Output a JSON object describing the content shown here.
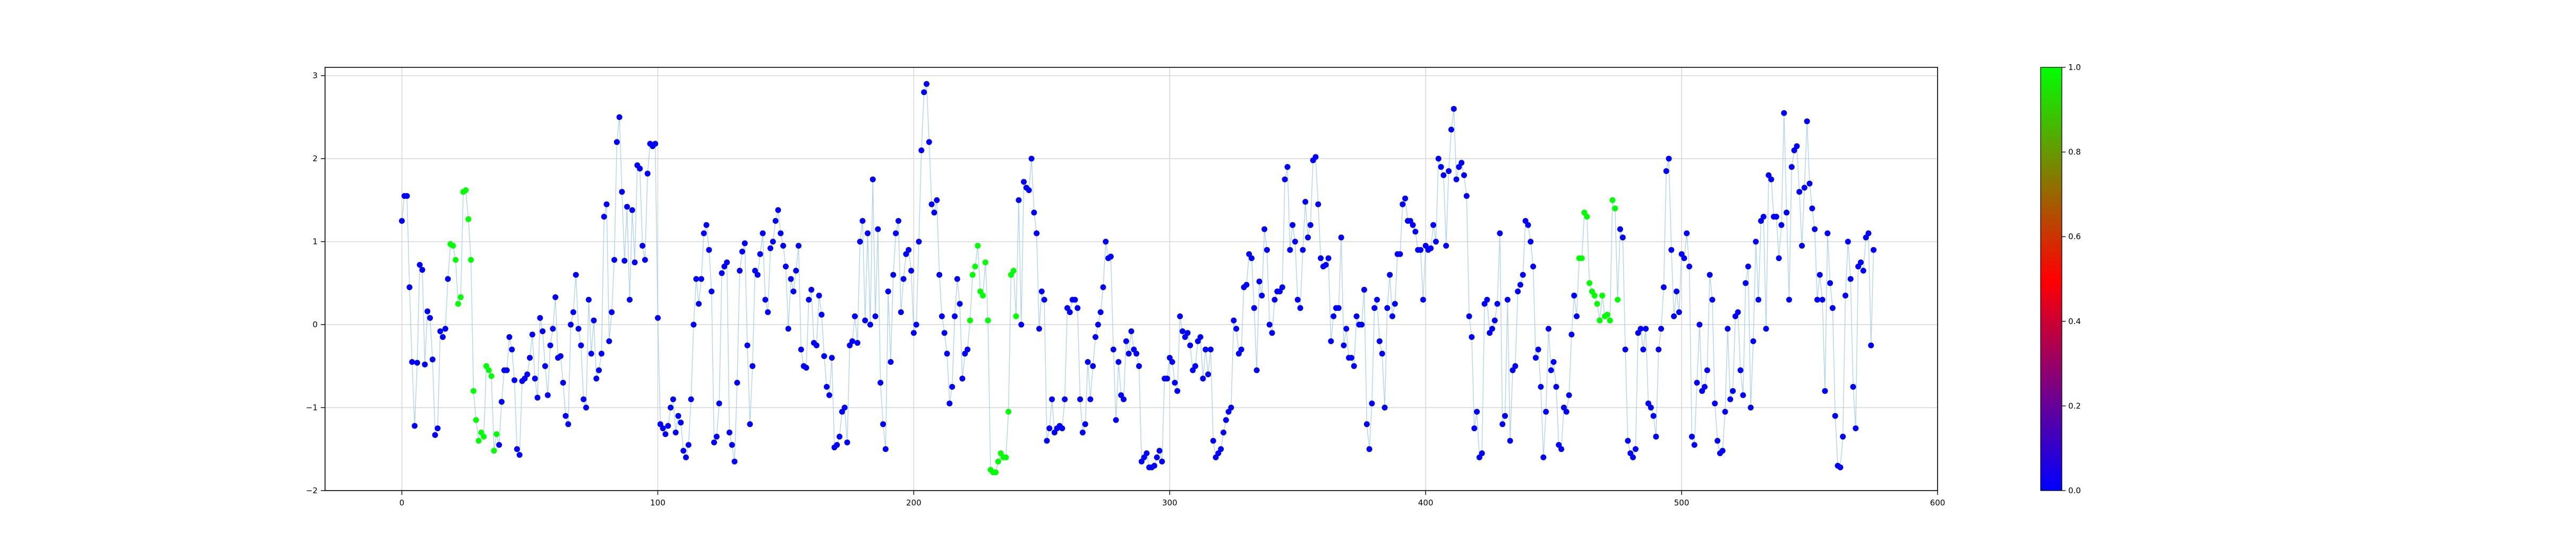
{
  "chart_data": {
    "type": "scatter",
    "title": "",
    "xlabel": "",
    "ylabel": "",
    "xlim": [
      -30,
      600
    ],
    "ylim": [
      -2,
      3.1
    ],
    "xticks": [
      0,
      100,
      200,
      300,
      400,
      500,
      600
    ],
    "yticks": [
      -2,
      -1,
      0,
      1,
      2,
      3
    ],
    "grid": true,
    "connecting_line": true,
    "colorbar": {
      "range": [
        0.0,
        1.0
      ],
      "ticks": [
        "0.0",
        "0.2",
        "0.4",
        "0.6",
        "0.8",
        "1.0"
      ],
      "colors": [
        "#0000ff",
        "#ff0000",
        "#00ff00"
      ]
    },
    "point_colors": {
      "low": "#0000ff",
      "high": "#00ff00"
    },
    "green_ranges": [
      [
        19,
        28
      ],
      [
        29,
        37
      ],
      [
        222,
        240
      ],
      [
        460,
        475
      ]
    ],
    "y": [
      1.25,
      1.55,
      1.55,
      0.45,
      -0.45,
      -1.22,
      -0.46,
      0.72,
      0.66,
      -0.48,
      0.16,
      0.08,
      -0.42,
      -1.33,
      -1.25,
      -0.08,
      -0.15,
      -0.05,
      0.55,
      0.97,
      0.95,
      0.78,
      0.25,
      0.33,
      1.6,
      1.62,
      1.27,
      0.78,
      -0.8,
      -1.15,
      -1.4,
      -1.3,
      -1.35,
      -0.5,
      -0.55,
      -0.62,
      -1.52,
      -1.32,
      -1.45,
      -0.93,
      -0.55,
      -0.55,
      -0.15,
      -0.3,
      -0.67,
      -1.5,
      -1.57,
      -0.68,
      -0.65,
      -0.6,
      -0.4,
      -0.12,
      -0.65,
      -0.88,
      0.08,
      -0.08,
      -0.5,
      -0.85,
      -0.25,
      -0.05,
      0.33,
      -0.4,
      -0.38,
      -0.7,
      -1.1,
      -1.2,
      0.0,
      0.15,
      0.6,
      -0.05,
      -0.25,
      -0.9,
      -1.0,
      0.3,
      -0.35,
      0.05,
      -0.65,
      -0.55,
      -0.35,
      1.3,
      1.45,
      -0.2,
      0.15,
      0.78,
      2.2,
      2.5,
      1.6,
      0.77,
      1.42,
      0.3,
      1.38,
      0.75,
      1.92,
      1.88,
      0.95,
      0.78,
      1.82,
      2.18,
      2.15,
      2.18,
      0.08,
      -1.2,
      -1.25,
      -1.32,
      -1.22,
      -1.0,
      -0.9,
      -1.3,
      -1.1,
      -1.18,
      -1.52,
      -1.6,
      -1.45,
      -0.9,
      0.0,
      0.55,
      0.25,
      0.55,
      1.1,
      1.2,
      0.9,
      0.4,
      -1.42,
      -1.35,
      -0.95,
      0.62,
      0.7,
      0.75,
      -1.3,
      -1.45,
      -1.65,
      -0.7,
      0.65,
      0.88,
      0.98,
      -0.25,
      -1.2,
      -0.5,
      0.65,
      0.6,
      0.85,
      1.1,
      0.3,
      0.15,
      0.92,
      1.0,
      1.25,
      1.38,
      1.1,
      0.95,
      0.7,
      -0.05,
      0.55,
      0.4,
      0.65,
      0.95,
      -0.3,
      -0.5,
      -0.52,
      0.3,
      0.42,
      -0.22,
      -0.25,
      0.35,
      0.12,
      -0.38,
      -0.75,
      -0.85,
      -0.4,
      -1.48,
      -1.45,
      -1.35,
      -1.05,
      -1.0,
      -1.42,
      -0.25,
      -0.2,
      0.1,
      -0.22,
      1.0,
      1.25,
      0.05,
      1.1,
      0.0,
      1.75,
      0.1,
      1.15,
      -0.7,
      -1.2,
      -1.5,
      0.4,
      -0.45,
      0.6,
      1.1,
      1.25,
      0.15,
      0.55,
      0.85,
      0.9,
      0.65,
      -0.1,
      0.0,
      1.0,
      2.1,
      2.8,
      2.9,
      2.2,
      1.45,
      1.35,
      1.5,
      0.6,
      0.1,
      -0.1,
      -0.35,
      -0.95,
      -0.75,
      0.1,
      0.55,
      0.25,
      -0.65,
      -0.35,
      -0.3,
      0.05,
      0.6,
      0.7,
      0.95,
      0.4,
      0.35,
      0.75,
      0.05,
      -1.75,
      -1.78,
      -1.78,
      -1.65,
      -1.55,
      -1.6,
      -1.6,
      -1.05,
      0.6,
      0.65,
      0.1,
      1.5,
      0.0,
      1.72,
      1.65,
      1.62,
      2.0,
      1.35,
      1.1,
      -0.05,
      0.4,
      0.3,
      -1.4,
      -1.25,
      -0.9,
      -1.3,
      -1.25,
      -1.22,
      -1.25,
      -0.9,
      0.2,
      0.15,
      0.3,
      0.3,
      0.2,
      -0.9,
      -1.3,
      -1.2,
      -0.45,
      -0.9,
      -0.5,
      -0.15,
      0.0,
      0.15,
      0.45,
      1.0,
      0.8,
      0.82,
      -0.3,
      -1.15,
      -0.45,
      -0.85,
      -0.9,
      -0.2,
      -0.35,
      -0.08,
      -0.3,
      -0.35,
      -0.5,
      -1.65,
      -1.6,
      -1.55,
      -1.72,
      -1.72,
      -1.7,
      -1.6,
      -1.52,
      -1.65,
      -0.65,
      -0.65,
      -0.4,
      -0.45,
      -0.7,
      -0.8,
      0.1,
      -0.08,
      -0.15,
      -0.1,
      -0.25,
      -0.55,
      -0.5,
      -0.2,
      -0.15,
      -0.65,
      -0.3,
      -0.6,
      -0.3,
      -1.4,
      -1.6,
      -1.55,
      -1.5,
      -1.3,
      -1.15,
      -1.05,
      -1.0,
      0.05,
      -0.05,
      -0.35,
      -0.3,
      0.45,
      0.48,
      0.85,
      0.8,
      0.2,
      -0.55,
      0.52,
      0.35,
      1.15,
      0.9,
      0.0,
      -0.1,
      0.3,
      0.4,
      0.4,
      0.45,
      1.75,
      1.9,
      0.9,
      1.2,
      1.0,
      0.3,
      0.2,
      0.9,
      1.48,
      1.05,
      1.2,
      1.98,
      2.02,
      1.45,
      0.8,
      0.7,
      0.72,
      0.8,
      -0.2,
      0.1,
      0.2,
      0.2,
      1.05,
      -0.25,
      -0.05,
      -0.4,
      -0.4,
      -0.5,
      0.1,
      0.0,
      0.0,
      0.42,
      -1.2,
      -1.5,
      -0.95,
      0.2,
      0.3,
      -0.2,
      -0.35,
      -1.0,
      0.2,
      0.6,
      0.1,
      0.25,
      0.85,
      0.85,
      1.45,
      1.52,
      1.25,
      1.25,
      1.2,
      1.12,
      0.9,
      0.9,
      0.3,
      0.95,
      0.9,
      0.92,
      1.2,
      1.0,
      2.0,
      1.9,
      1.8,
      0.95,
      1.85,
      2.35,
      2.6,
      1.75,
      1.9,
      1.95,
      1.8,
      1.55,
      0.1,
      -0.15,
      -1.25,
      -1.05,
      -1.6,
      -1.55,
      0.25,
      0.3,
      -0.1,
      -0.05,
      0.05,
      0.25,
      1.1,
      -1.2,
      -1.1,
      0.3,
      -1.4,
      -0.55,
      -0.5,
      0.4,
      0.48,
      0.6,
      1.25,
      1.2,
      1.0,
      0.7,
      -0.4,
      -0.3,
      -0.75,
      -1.6,
      -1.05,
      -0.05,
      -0.55,
      -0.45,
      -0.75,
      -1.45,
      -1.5,
      -1.0,
      -1.05,
      -0.85,
      -0.12,
      0.35,
      0.1,
      0.8,
      0.8,
      1.35,
      1.3,
      0.5,
      0.4,
      0.35,
      0.25,
      0.05,
      0.35,
      0.1,
      0.12,
      0.05,
      1.5,
      1.4,
      0.3,
      1.15,
      1.05,
      -0.3,
      -1.4,
      -1.55,
      -1.6,
      -1.5,
      -0.1,
      -0.05,
      -0.3,
      -0.05,
      -0.95,
      -1.0,
      -1.1,
      -1.35,
      -0.3,
      -0.05,
      0.45,
      1.85,
      2.0,
      0.9,
      0.1,
      0.4,
      0.15,
      0.85,
      0.8,
      1.1,
      0.7,
      -1.35,
      -1.45,
      -0.7,
      0.0,
      -0.8,
      -0.75,
      -0.55,
      0.6,
      0.3,
      -0.95,
      -1.4,
      -1.55,
      -1.52,
      -1.05,
      -0.05,
      -0.9,
      -0.8,
      0.1,
      0.15,
      -0.55,
      -0.85,
      0.5,
      0.7,
      -1.0,
      -0.2,
      1.0,
      0.3,
      1.25,
      1.3,
      -0.05,
      1.8,
      1.75,
      1.3,
      1.3,
      0.8,
      1.2,
      2.55,
      1.35,
      0.3,
      1.9,
      2.1,
      2.15,
      1.6,
      0.95,
      1.65,
      2.45,
      1.7,
      1.4,
      1.15,
      0.3,
      0.6,
      0.3,
      -0.8,
      1.1,
      0.5,
      0.2,
      -1.1,
      -1.7,
      -1.72,
      -1.35,
      0.35,
      1.0,
      0.55,
      -0.75,
      -1.25,
      0.7,
      0.75,
      0.65,
      1.05,
      1.1,
      -0.25,
      0.9
    ]
  }
}
